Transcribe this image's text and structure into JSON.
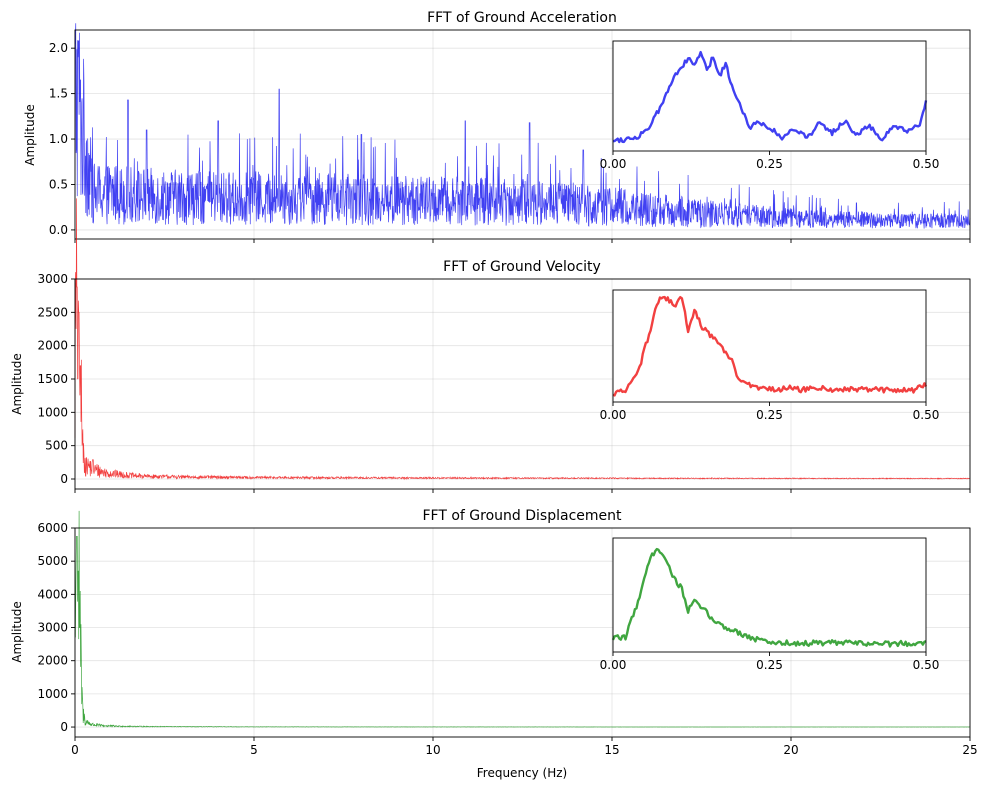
{
  "figure": {
    "xlabel": "Frequency (Hz)",
    "xlim": [
      0,
      25
    ],
    "xticks": [
      0,
      5,
      10,
      15,
      20,
      25
    ]
  },
  "chart_data": [
    {
      "type": "line",
      "title": "FFT of Ground Acceleration",
      "xlabel": "",
      "ylabel": "Amplitude",
      "xlim": [
        0,
        25
      ],
      "ylim": [
        -0.1,
        2.2
      ],
      "yticks": [
        0.0,
        0.5,
        1.0,
        1.5,
        2.0
      ],
      "ytick_labels": [
        "0.0",
        "0.5",
        "1.0",
        "1.5",
        "2.0"
      ],
      "color": "#0000ee",
      "grid": true,
      "envelope": {
        "x": [
          0.05,
          0.5,
          1.0,
          1.5,
          2,
          3,
          4,
          5,
          6,
          7,
          8,
          9,
          10,
          11,
          12,
          13,
          14,
          15,
          16,
          17,
          18,
          19,
          20,
          21,
          22,
          23,
          24,
          25
        ],
        "mean": [
          1.5,
          0.4,
          0.4,
          0.38,
          0.37,
          0.36,
          0.35,
          0.35,
          0.34,
          0.34,
          0.33,
          0.33,
          0.32,
          0.32,
          0.31,
          0.3,
          0.28,
          0.26,
          0.22,
          0.2,
          0.17,
          0.15,
          0.13,
          0.12,
          0.11,
          0.1,
          0.1,
          0.1
        ],
        "peaks": [
          [
            0.1,
            2.08
          ],
          [
            0.15,
            1.65
          ],
          [
            1.48,
            1.43
          ],
          [
            5.7,
            1.55
          ],
          [
            4.0,
            1.2
          ],
          [
            10.9,
            1.2
          ],
          [
            12.7,
            1.18
          ],
          [
            8.0,
            1.05
          ],
          [
            2.0,
            1.1
          ],
          [
            14.2,
            0.88
          ]
        ]
      },
      "inset": {
        "xlim": [
          0,
          0.5
        ],
        "xticks": [
          0.0,
          0.25,
          0.5
        ],
        "xtick_labels": [
          "0.00",
          "0.25",
          "0.50"
        ],
        "x": [
          0.0,
          0.02,
          0.04,
          0.06,
          0.08,
          0.1,
          0.11,
          0.12,
          0.13,
          0.14,
          0.15,
          0.16,
          0.17,
          0.18,
          0.19,
          0.2,
          0.21,
          0.22,
          0.23,
          0.25,
          0.27,
          0.29,
          0.31,
          0.33,
          0.35,
          0.37,
          0.39,
          0.41,
          0.43,
          0.45,
          0.47,
          0.49,
          0.5
        ],
        "y": [
          0.15,
          0.16,
          0.22,
          0.45,
          0.95,
          1.55,
          1.7,
          1.85,
          1.72,
          2.0,
          1.6,
          1.9,
          1.5,
          1.75,
          1.3,
          0.95,
          0.7,
          0.38,
          0.55,
          0.42,
          0.18,
          0.4,
          0.2,
          0.5,
          0.3,
          0.55,
          0.25,
          0.45,
          0.15,
          0.45,
          0.3,
          0.48,
          0.95
        ],
        "ylim": [
          0,
          2.15
        ]
      }
    },
    {
      "type": "line",
      "title": "FFT of Ground Velocity",
      "xlabel": "",
      "ylabel": "Amplitude",
      "xlim": [
        0,
        25
      ],
      "ylim": [
        -150,
        3000
      ],
      "yticks": [
        0,
        500,
        1000,
        1500,
        2000,
        2500,
        3000
      ],
      "ytick_labels": [
        "0",
        "500",
        "1000",
        "1500",
        "2000",
        "2500",
        "3000"
      ],
      "color": "#ee0000",
      "grid": true,
      "envelope": {
        "x": [
          0.02,
          0.06,
          0.1,
          0.14,
          0.18,
          0.22,
          0.3,
          0.5,
          0.8,
          1.2,
          1.6,
          2.0,
          3,
          5,
          8,
          12,
          16,
          20,
          25
        ],
        "mean": [
          2000,
          2750,
          2200,
          1600,
          1000,
          400,
          220,
          150,
          100,
          70,
          50,
          40,
          30,
          22,
          17,
          13,
          10,
          8,
          7
        ],
        "peaks": [
          [
            0.06,
            2880
          ],
          [
            0.11,
            2500
          ],
          [
            0.15,
            1700
          ],
          [
            0.32,
            320
          ],
          [
            0.5,
            290
          ]
        ]
      },
      "inset": {
        "xlim": [
          0,
          0.5
        ],
        "xticks": [
          0.0,
          0.25,
          0.5
        ],
        "xtick_labels": [
          "0.00",
          "0.25",
          "0.50"
        ],
        "x": [
          0.0,
          0.02,
          0.04,
          0.06,
          0.07,
          0.08,
          0.09,
          0.1,
          0.11,
          0.115,
          0.12,
          0.13,
          0.14,
          0.15,
          0.16,
          0.17,
          0.18,
          0.19,
          0.2,
          0.22,
          0.24,
          0.26,
          0.28,
          0.3,
          0.33,
          0.36,
          0.4,
          0.44,
          0.48,
          0.5
        ],
        "y": [
          120,
          200,
          700,
          1900,
          2600,
          2800,
          2650,
          2550,
          2800,
          2400,
          1750,
          2450,
          2000,
          1800,
          1650,
          1450,
          1250,
          1000,
          550,
          320,
          280,
          220,
          280,
          220,
          280,
          220,
          250,
          220,
          220,
          350
        ],
        "ylim": [
          0,
          2850
        ]
      }
    },
    {
      "type": "line",
      "title": "FFT of Ground Displacement",
      "xlabel": "Frequency (Hz)",
      "ylabel": "Amplitude",
      "xlim": [
        0,
        25
      ],
      "ylim": [
        -300,
        6000
      ],
      "yticks": [
        0,
        1000,
        2000,
        3000,
        4000,
        5000,
        6000
      ],
      "ytick_labels": [
        "0",
        "1000",
        "2000",
        "3000",
        "4000",
        "5000",
        "6000"
      ],
      "color": "#008800",
      "grid": true,
      "envelope": {
        "x": [
          0.02,
          0.06,
          0.1,
          0.14,
          0.18,
          0.22,
          0.3,
          0.5,
          0.8,
          1.2,
          2,
          3,
          5,
          8,
          12,
          16,
          20,
          25
        ],
        "mean": [
          3000,
          5600,
          4500,
          2600,
          1300,
          400,
          160,
          70,
          40,
          25,
          15,
          10,
          6,
          4,
          3,
          2,
          2,
          2
        ],
        "peaks": [
          [
            0.05,
            5750
          ],
          [
            0.09,
            4700
          ],
          [
            0.13,
            3000
          ]
        ]
      },
      "inset": {
        "xlim": [
          0,
          0.5
        ],
        "xticks": [
          0.0,
          0.25,
          0.5
        ],
        "xtick_labels": [
          "0.00",
          "0.25",
          "0.50"
        ],
        "x": [
          0.0,
          0.02,
          0.04,
          0.05,
          0.06,
          0.07,
          0.08,
          0.09,
          0.1,
          0.11,
          0.12,
          0.13,
          0.14,
          0.15,
          0.16,
          0.18,
          0.2,
          0.22,
          0.25,
          0.3,
          0.35,
          0.4,
          0.45,
          0.5
        ],
        "y": [
          500,
          600,
          2500,
          3800,
          4800,
          5400,
          5100,
          4300,
          3600,
          3200,
          2000,
          2500,
          2200,
          1900,
          1500,
          1100,
          850,
          550,
          300,
          250,
          280,
          250,
          220,
          300
        ],
        "ylim": [
          0,
          5700
        ]
      }
    }
  ]
}
